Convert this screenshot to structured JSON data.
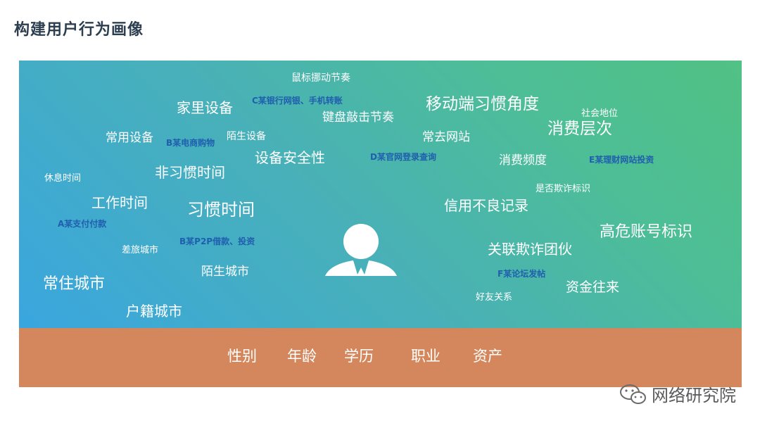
{
  "title": "构建用户行为画像",
  "words": [
    {
      "text": "鼠标挪动节奏",
      "style": "white"
    },
    {
      "text": "C某银行网银、手机转账",
      "style": "blue"
    },
    {
      "text": "家里设备",
      "style": "white"
    },
    {
      "text": "键盘敲击节奏",
      "style": "white"
    },
    {
      "text": "移动端习惯角度",
      "style": "white"
    },
    {
      "text": "社会地位",
      "style": "white"
    },
    {
      "text": "消费层次",
      "style": "white"
    },
    {
      "text": "常用设备",
      "style": "white"
    },
    {
      "text": "B某电商购物",
      "style": "blue"
    },
    {
      "text": "陌生设备",
      "style": "white"
    },
    {
      "text": "常去网站",
      "style": "white"
    },
    {
      "text": "设备安全性",
      "style": "white"
    },
    {
      "text": "D某官网登录查询",
      "style": "blue"
    },
    {
      "text": "消费频度",
      "style": "white"
    },
    {
      "text": "E某理财网站投资",
      "style": "blue"
    },
    {
      "text": "休息时间",
      "style": "white"
    },
    {
      "text": "非习惯时间",
      "style": "white"
    },
    {
      "text": "是否欺诈标识",
      "style": "white"
    },
    {
      "text": "工作时间",
      "style": "white"
    },
    {
      "text": "习惯时间",
      "style": "white"
    },
    {
      "text": "信用不良记录",
      "style": "white"
    },
    {
      "text": "A某支付付款",
      "style": "blue"
    },
    {
      "text": "高危账号标识",
      "style": "white"
    },
    {
      "text": "B某P2P借款、投资",
      "style": "blue"
    },
    {
      "text": "差旅城市",
      "style": "white"
    },
    {
      "text": "关联欺诈团伙",
      "style": "white"
    },
    {
      "text": "陌生城市",
      "style": "white"
    },
    {
      "text": "F某论坛发帖",
      "style": "blue"
    },
    {
      "text": "常住城市",
      "style": "white"
    },
    {
      "text": "资金往来",
      "style": "white"
    },
    {
      "text": "好友关系",
      "style": "white"
    },
    {
      "text": "户籍城市",
      "style": "white"
    }
  ],
  "footer": [
    "性别",
    "年龄",
    "学历",
    "职业",
    "资产"
  ],
  "watermark": "网络研究院",
  "colors": {
    "panel_start": "#3aa6df",
    "panel_end": "#51c184",
    "footer": "#d4875c",
    "blue_text": "#1f5fae",
    "title": "#2c3e50"
  }
}
